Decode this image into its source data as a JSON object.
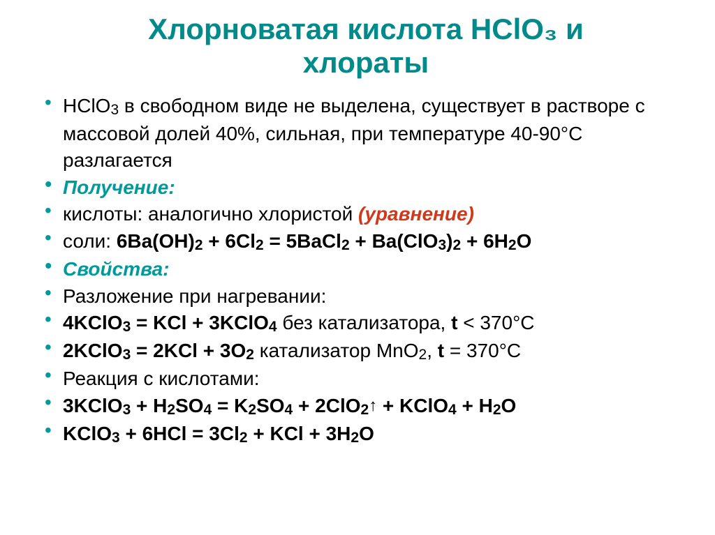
{
  "title": {
    "line1": "Хлорноватая кислота HClO₃ и",
    "line2": "хлораты",
    "color": "#008a8a",
    "fontsize": 42
  },
  "body": {
    "fontsize": 28,
    "line_height": 1.38,
    "text_color": "#000000",
    "accent_color": "#009a9a",
    "highlight_color": "#d03a1a"
  },
  "lines": [
    {
      "html": "HClO<sub class='sub'>3</sub> в свободном виде не выделена, существует в растворе с массовой долей 40%, сильная, при температуре 40-90°С разлагается",
      "color": "#000000"
    },
    {
      "html": "Получение:",
      "color": "#009a9a",
      "italic": true
    },
    {
      "html": "кислоты: аналогично хлористой <span style='color:#d03a1a;font-style:italic;font-weight:bold;'>(уравнение)</span>",
      "color": "#000000"
    },
    {
      "html": "соли: <b>6Ba(OH)<sub class='sub'>2</sub> + 6Cl<sub class='sub'>2</sub> = 5BaCl<sub class='sub'>2</sub> + Ba(ClO<sub class='sub'>3</sub>)<sub class='sub'>2</sub> + 6H<sub class='sub'>2</sub>O</b>",
      "color": "#000000"
    },
    {
      "html": "Свойства:",
      "color": "#009a9a",
      "italic": true
    },
    {
      "html": "Разложение при нагревании:",
      "color": "#000000"
    },
    {
      "html": "<b>4KClO<sub class='sub'>3</sub> = KCl + 3KClO<sub class='sub'>4</sub></b> без катализатора, <b>t</b> &lt; 370°С",
      "color": "#000000"
    },
    {
      "html": "<b>2KClO<sub class='sub'>3</sub> = 2KCl + 3O<sub class='sub'>2</sub></b> катализатор MnO<sub class='sub'>2</sub>, <b>t</b> = 370°С",
      "color": "#000000"
    },
    {
      "html": "Реакция с кислотами:",
      "color": "#000000"
    },
    {
      "html": "<b>3KClO<sub class='sub'>3</sub> + H<sub class='sub'>2</sub>SO<sub class='sub'>4</sub> = K<sub class='sub'>2</sub>SO<sub class='sub'>4</sub> + 2ClO<sub class='sub'>2</sub><span class='up'>↑</span> + KClO<sub class='sub'>4</sub> + H<sub class='sub'>2</sub>O</b>",
      "color": "#000000"
    },
    {
      "html": "<b>KClO<sub class='sub'>3</sub> + 6HCl = 3Cl<sub class='sub'>2</sub> + KCl + 3H<sub class='sub'>2</sub>O</b>",
      "color": "#000000"
    }
  ]
}
